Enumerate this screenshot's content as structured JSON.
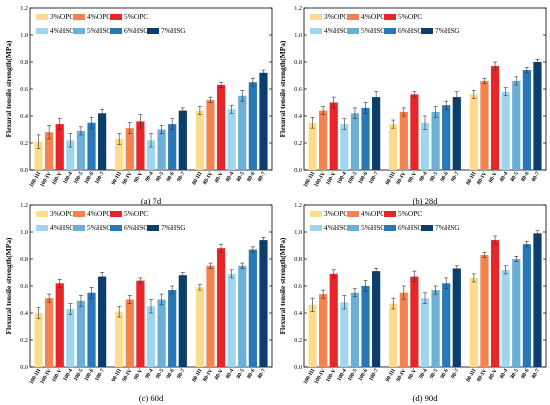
{
  "chart_data": [
    {
      "type": "bar",
      "caption": "(a) 7d",
      "ylabel": "Flexural tensile strength(MPa)",
      "ylim": [
        0,
        1.2
      ],
      "yticks": [
        "0.0",
        "0.2",
        "0.4",
        "0.6",
        "0.8",
        "1.0",
        "1.2"
      ],
      "legend": [
        "3%OPC",
        "4%OPC",
        "5%OPC",
        "4%HSG",
        "5%HSG",
        "6%HSG",
        "7%HSG"
      ],
      "groups": [
        {
          "labels": [
            "100-III",
            "100-IV",
            "100-V",
            "100-4",
            "100-5",
            "100-6",
            "100-7"
          ],
          "values": [
            0.21,
            0.28,
            0.34,
            0.22,
            0.29,
            0.35,
            0.42
          ],
          "errors": [
            0.05,
            0.05,
            0.04,
            0.05,
            0.03,
            0.04,
            0.03
          ]
        },
        {
          "labels": [
            "90-III",
            "90-IV",
            "90-V",
            "90-4",
            "90-5",
            "90-6",
            "90-7"
          ],
          "values": [
            0.23,
            0.31,
            0.36,
            0.22,
            0.3,
            0.34,
            0.44
          ],
          "errors": [
            0.04,
            0.04,
            0.05,
            0.05,
            0.03,
            0.04,
            0.02
          ]
        },
        {
          "labels": [
            "80-III",
            "80-IV",
            "80-V",
            "80-4",
            "80-5",
            "80-6",
            "80-7"
          ],
          "values": [
            0.44,
            0.52,
            0.63,
            0.45,
            0.55,
            0.65,
            0.72
          ],
          "errors": [
            0.03,
            0.02,
            0.02,
            0.03,
            0.04,
            0.03,
            0.02
          ]
        }
      ]
    },
    {
      "type": "bar",
      "caption": "(b) 28d",
      "ylabel": "Flexural tensile strength(MPa)",
      "ylim": [
        0,
        1.2
      ],
      "yticks": [
        "0.0",
        "0.2",
        "0.4",
        "0.6",
        "0.8",
        "1.0",
        "1.2"
      ],
      "legend": [
        "3%OPC",
        "4%OPC",
        "5%OPC",
        "4%HSG",
        "5%HSG",
        "6%HSG",
        "7%HSG"
      ],
      "groups": [
        {
          "labels": [
            "100-III",
            "100-IV",
            "100-V",
            "100-4",
            "100-5",
            "100-6",
            "100-7"
          ],
          "values": [
            0.35,
            0.44,
            0.5,
            0.34,
            0.42,
            0.46,
            0.54
          ],
          "errors": [
            0.04,
            0.03,
            0.04,
            0.04,
            0.04,
            0.04,
            0.04
          ]
        },
        {
          "labels": [
            "90-III",
            "90-IV",
            "90-V",
            "90-4",
            "90-5",
            "90-6",
            "90-7"
          ],
          "values": [
            0.34,
            0.43,
            0.56,
            0.35,
            0.43,
            0.48,
            0.54
          ],
          "errors": [
            0.03,
            0.03,
            0.02,
            0.05,
            0.04,
            0.03,
            0.04
          ]
        },
        {
          "labels": [
            "80-III",
            "80-IV",
            "80-V",
            "80-4",
            "80-5",
            "80-6",
            "80-7"
          ],
          "values": [
            0.56,
            0.66,
            0.77,
            0.58,
            0.66,
            0.74,
            0.8
          ],
          "errors": [
            0.03,
            0.02,
            0.03,
            0.03,
            0.03,
            0.02,
            0.02
          ]
        }
      ]
    },
    {
      "type": "bar",
      "caption": "(c) 60d",
      "ylabel": "Flexural tensile strength(MPa)",
      "ylim": [
        0,
        1.2
      ],
      "yticks": [
        "0.0",
        "0.2",
        "0.4",
        "0.6",
        "0.8",
        "1.0",
        "1.2"
      ],
      "legend": [
        "3%OPC",
        "4%OPC",
        "5%OPC",
        "4%HSG",
        "5%HSG",
        "6%HSG",
        "7%HSG"
      ],
      "groups": [
        {
          "labels": [
            "100-III",
            "100-IV",
            "100-V",
            "100-4",
            "100-5",
            "100-6",
            "100-7"
          ],
          "values": [
            0.4,
            0.51,
            0.62,
            0.43,
            0.49,
            0.55,
            0.67
          ],
          "errors": [
            0.04,
            0.03,
            0.03,
            0.04,
            0.04,
            0.04,
            0.03
          ]
        },
        {
          "labels": [
            "90-III",
            "90-IV",
            "90-V",
            "90-4",
            "90-5",
            "90-6",
            "90-7"
          ],
          "values": [
            0.41,
            0.5,
            0.64,
            0.45,
            0.5,
            0.57,
            0.68
          ],
          "errors": [
            0.04,
            0.03,
            0.02,
            0.05,
            0.04,
            0.03,
            0.02
          ]
        },
        {
          "labels": [
            "80-III",
            "80-IV",
            "80-V",
            "80-4",
            "80-5",
            "80-6",
            "80-7"
          ],
          "values": [
            0.59,
            0.75,
            0.88,
            0.69,
            0.75,
            0.87,
            0.94
          ],
          "errors": [
            0.02,
            0.02,
            0.03,
            0.03,
            0.02,
            0.02,
            0.02
          ]
        }
      ]
    },
    {
      "type": "bar",
      "caption": "(d) 90d",
      "ylabel": "Flexural tensile strength(MPa)",
      "ylim": [
        0,
        1.2
      ],
      "yticks": [
        "0.0",
        "0.2",
        "0.4",
        "0.6",
        "0.8",
        "1.0",
        "1.2"
      ],
      "legend": [
        "3%OPC",
        "4%OPC",
        "5%OPC",
        "4%HSG",
        "5%HSG",
        "6%HSG",
        "7%HSG"
      ],
      "groups": [
        {
          "labels": [
            "100-III",
            "100-IV",
            "100-V",
            "100-4",
            "100-5",
            "100-6",
            "100-7"
          ],
          "values": [
            0.46,
            0.54,
            0.69,
            0.48,
            0.55,
            0.6,
            0.71
          ],
          "errors": [
            0.05,
            0.03,
            0.03,
            0.05,
            0.03,
            0.04,
            0.02
          ]
        },
        {
          "labels": [
            "90-III",
            "90-IV",
            "90-V",
            "90-4",
            "90-5",
            "90-6",
            "90-7"
          ],
          "values": [
            0.47,
            0.55,
            0.67,
            0.51,
            0.57,
            0.62,
            0.73
          ],
          "errors": [
            0.04,
            0.05,
            0.04,
            0.04,
            0.03,
            0.04,
            0.02
          ]
        },
        {
          "labels": [
            "80-III",
            "80-IV",
            "80-V",
            "80-4",
            "80-5",
            "80-6",
            "80-7"
          ],
          "values": [
            0.66,
            0.83,
            0.94,
            0.72,
            0.8,
            0.91,
            0.99
          ],
          "errors": [
            0.03,
            0.02,
            0.03,
            0.03,
            0.02,
            0.02,
            0.02
          ]
        }
      ]
    }
  ],
  "colors": [
    "#fbdc8c",
    "#f5834f",
    "#e8262a",
    "#9fd6ef",
    "#6baed6",
    "#2878b8",
    "#0b3e6d"
  ]
}
